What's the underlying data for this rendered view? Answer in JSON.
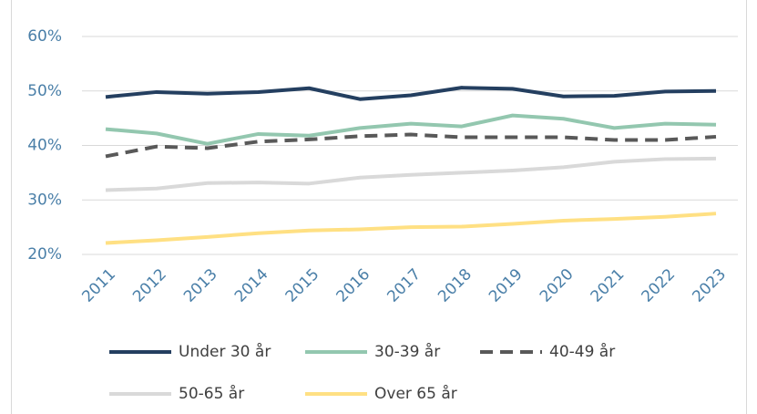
{
  "chart_data": {
    "type": "line",
    "categories": [
      "2011",
      "2012",
      "2013",
      "2014",
      "2015",
      "2016",
      "2017",
      "2018",
      "2019",
      "2020",
      "2021",
      "2022",
      "2023"
    ],
    "series": [
      {
        "name": "Under 30 år",
        "color": "#243f60",
        "values": [
          48.9,
          49.8,
          49.5,
          49.8,
          50.5,
          48.5,
          49.2,
          50.6,
          50.4,
          49.0,
          49.1,
          49.9,
          50.0
        ]
      },
      {
        "name": "30-39 år",
        "color": "#93c7af",
        "values": [
          43.0,
          42.2,
          40.3,
          42.1,
          41.8,
          43.2,
          44.0,
          43.5,
          45.5,
          44.9,
          43.2,
          44.0,
          43.8
        ]
      },
      {
        "name": "40-49 år",
        "color": "#595959",
        "dash": true,
        "values": [
          38.0,
          39.8,
          39.5,
          40.7,
          41.1,
          41.7,
          42.0,
          41.5,
          41.5,
          41.5,
          41.0,
          41.0,
          41.6
        ]
      },
      {
        "name": "50-65 år",
        "color": "#d9d9d9",
        "values": [
          31.8,
          32.1,
          33.1,
          33.2,
          33.0,
          34.1,
          34.6,
          35.0,
          35.4,
          36.0,
          37.0,
          37.5,
          37.6
        ]
      },
      {
        "name": "Over 65 år",
        "color": "#ffe083",
        "values": [
          22.1,
          22.6,
          23.2,
          23.9,
          24.4,
          24.6,
          25.0,
          25.1,
          25.6,
          26.2,
          26.5,
          26.9,
          27.5
        ]
      }
    ],
    "ylim": [
      20,
      60
    ],
    "yticks": [
      {
        "value": 20,
        "label": "20%"
      },
      {
        "value": 30,
        "label": "30%"
      },
      {
        "value": 40,
        "label": "40%"
      },
      {
        "value": 50,
        "label": "50%"
      },
      {
        "value": 60,
        "label": "60%"
      }
    ],
    "grid": true
  }
}
